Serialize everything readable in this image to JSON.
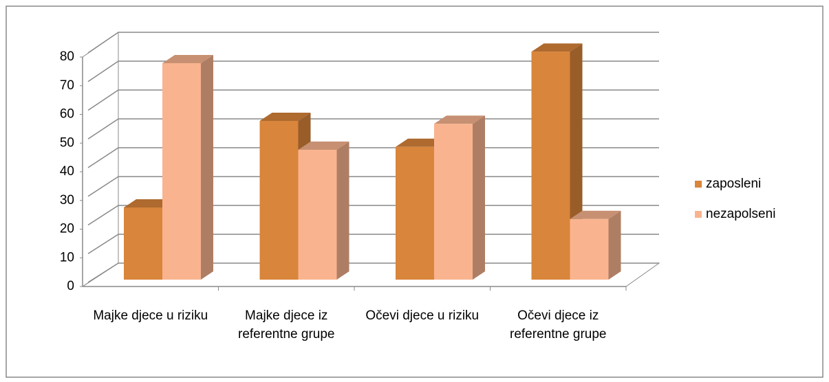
{
  "chart_data": {
    "type": "bar",
    "categories": [
      "Majke djece u riziku",
      "Majke djece iz referentne grupe",
      "Očevi djece u riziku",
      "Očevi djece iz referentne grupe"
    ],
    "series": [
      {
        "name": "zaposleni",
        "color": "#d9853b",
        "values": [
          25,
          55,
          46,
          79
        ]
      },
      {
        "name": "nezapolseni",
        "color": "#f9b48f",
        "values": [
          75,
          45,
          54,
          21
        ]
      }
    ],
    "ylim": [
      0,
      80
    ],
    "yticks": [
      0,
      10,
      20,
      30,
      40,
      50,
      60,
      70,
      80
    ],
    "grid": true,
    "legend": "right"
  }
}
